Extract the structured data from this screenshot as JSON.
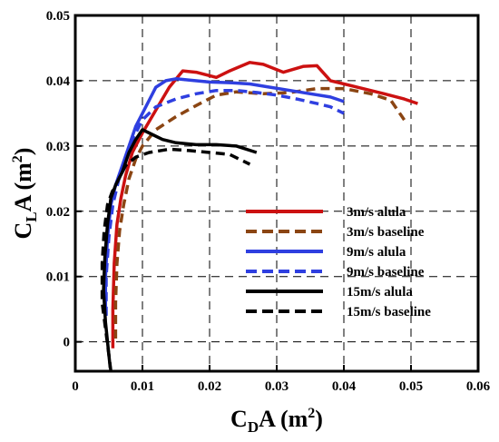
{
  "chart_data": {
    "type": "line",
    "xlabel": {
      "main": "C",
      "sub": "D",
      "rest": "A (m",
      "sup": "2",
      "end": ")"
    },
    "ylabel": {
      "main": "C",
      "sub": "L",
      "rest": "A (m",
      "sup": "2",
      "end": ")"
    },
    "xlim": [
      0,
      0.06
    ],
    "ylim": [
      -0.0045,
      0.05
    ],
    "x_ticks": [
      0,
      0.01,
      0.02,
      0.03,
      0.04,
      0.05,
      0.06
    ],
    "x_tick_labels": [
      "0",
      "0.01",
      "0.02",
      "0.03",
      "0.04",
      "0.05",
      "0.06"
    ],
    "y_ticks": [
      0,
      0.01,
      0.02,
      0.03,
      0.04,
      0.05
    ],
    "y_tick_labels": [
      "0",
      "0.01",
      "0.02",
      "0.03",
      "0.04",
      "0.05"
    ],
    "grid": true,
    "legend_position": "lower-right",
    "series": [
      {
        "name": "3m/s alula",
        "color": "#cc1111",
        "dash": "solid",
        "points": [
          [
            0.0056,
            -0.001
          ],
          [
            0.0056,
            0.005
          ],
          [
            0.0058,
            0.012
          ],
          [
            0.0062,
            0.018
          ],
          [
            0.0068,
            0.022
          ],
          [
            0.0075,
            0.0255
          ],
          [
            0.0085,
            0.029
          ],
          [
            0.01,
            0.032
          ],
          [
            0.012,
            0.0355
          ],
          [
            0.014,
            0.039
          ],
          [
            0.016,
            0.0415
          ],
          [
            0.018,
            0.0413
          ],
          [
            0.021,
            0.0405
          ],
          [
            0.023,
            0.0415
          ],
          [
            0.026,
            0.0428
          ],
          [
            0.028,
            0.0425
          ],
          [
            0.031,
            0.0413
          ],
          [
            0.034,
            0.0422
          ],
          [
            0.036,
            0.0423
          ],
          [
            0.038,
            0.04
          ],
          [
            0.042,
            0.039
          ],
          [
            0.046,
            0.038
          ],
          [
            0.049,
            0.0372
          ],
          [
            0.051,
            0.0365
          ]
        ]
      },
      {
        "name": "3m/s baseline",
        "color": "#8b4513",
        "dash": "dashed",
        "points": [
          [
            0.006,
            0.0005
          ],
          [
            0.006,
            0.006
          ],
          [
            0.0062,
            0.012
          ],
          [
            0.0066,
            0.017
          ],
          [
            0.0072,
            0.021
          ],
          [
            0.008,
            0.025
          ],
          [
            0.009,
            0.028
          ],
          [
            0.01,
            0.03
          ],
          [
            0.012,
            0.0325
          ],
          [
            0.015,
            0.0345
          ],
          [
            0.018,
            0.0362
          ],
          [
            0.021,
            0.0378
          ],
          [
            0.024,
            0.0383
          ],
          [
            0.028,
            0.038
          ],
          [
            0.032,
            0.0382
          ],
          [
            0.036,
            0.0388
          ],
          [
            0.04,
            0.0388
          ],
          [
            0.044,
            0.038
          ],
          [
            0.047,
            0.037
          ],
          [
            0.048,
            0.0355
          ],
          [
            0.049,
            0.034
          ]
        ]
      },
      {
        "name": "9m/s alula",
        "color": "#2f3fe0",
        "dash": "solid",
        "points": [
          [
            0.0045,
            0.004
          ],
          [
            0.0045,
            0.01
          ],
          [
            0.0048,
            0.016
          ],
          [
            0.0053,
            0.021
          ],
          [
            0.006,
            0.024
          ],
          [
            0.007,
            0.027
          ],
          [
            0.008,
            0.03
          ],
          [
            0.009,
            0.033
          ],
          [
            0.01,
            0.035
          ],
          [
            0.011,
            0.037
          ],
          [
            0.012,
            0.039
          ],
          [
            0.0135,
            0.04
          ],
          [
            0.015,
            0.0403
          ],
          [
            0.017,
            0.0401
          ],
          [
            0.02,
            0.0398
          ],
          [
            0.023,
            0.0397
          ],
          [
            0.026,
            0.0395
          ],
          [
            0.029,
            0.039
          ],
          [
            0.032,
            0.0385
          ],
          [
            0.035,
            0.038
          ],
          [
            0.038,
            0.0375
          ],
          [
            0.04,
            0.0368
          ]
        ]
      },
      {
        "name": "9m/s baseline",
        "color": "#2f3fe0",
        "dash": "dashed",
        "points": [
          [
            0.0046,
            0.004
          ],
          [
            0.0046,
            0.01
          ],
          [
            0.005,
            0.016
          ],
          [
            0.0056,
            0.021
          ],
          [
            0.0065,
            0.025
          ],
          [
            0.0075,
            0.028
          ],
          [
            0.0085,
            0.031
          ],
          [
            0.01,
            0.034
          ],
          [
            0.012,
            0.036
          ],
          [
            0.015,
            0.0372
          ],
          [
            0.018,
            0.038
          ],
          [
            0.021,
            0.0385
          ],
          [
            0.024,
            0.0385
          ],
          [
            0.027,
            0.0382
          ],
          [
            0.03,
            0.0378
          ],
          [
            0.033,
            0.0372
          ],
          [
            0.036,
            0.0365
          ],
          [
            0.038,
            0.036
          ],
          [
            0.04,
            0.035
          ]
        ]
      },
      {
        "name": "15m/s alula",
        "color": "#000000",
        "dash": "solid",
        "points": [
          [
            0.0052,
            -0.004
          ],
          [
            0.005,
            -0.002
          ],
          [
            0.0045,
            0.003
          ],
          [
            0.0042,
            0.008
          ],
          [
            0.0044,
            0.013
          ],
          [
            0.0048,
            0.018
          ],
          [
            0.0053,
            0.022
          ],
          [
            0.006,
            0.024
          ],
          [
            0.007,
            0.026
          ],
          [
            0.008,
            0.029
          ],
          [
            0.009,
            0.031
          ],
          [
            0.01,
            0.0325
          ],
          [
            0.011,
            0.032
          ],
          [
            0.013,
            0.031
          ],
          [
            0.015,
            0.0305
          ],
          [
            0.018,
            0.0302
          ],
          [
            0.021,
            0.0302
          ],
          [
            0.024,
            0.03
          ],
          [
            0.027,
            0.029
          ]
        ]
      },
      {
        "name": "15m/s baseline",
        "color": "#000000",
        "dash": "dashed",
        "points": [
          [
            0.0053,
            -0.0045
          ],
          [
            0.005,
            -0.002
          ],
          [
            0.0045,
            0.002
          ],
          [
            0.004,
            0.006
          ],
          [
            0.004,
            0.012
          ],
          [
            0.0043,
            0.017
          ],
          [
            0.0048,
            0.021
          ],
          [
            0.0055,
            0.023
          ],
          [
            0.0065,
            0.025
          ],
          [
            0.0075,
            0.027
          ],
          [
            0.009,
            0.0283
          ],
          [
            0.011,
            0.029
          ],
          [
            0.014,
            0.0295
          ],
          [
            0.017,
            0.0293
          ],
          [
            0.02,
            0.029
          ],
          [
            0.023,
            0.0287
          ],
          [
            0.026,
            0.0272
          ]
        ]
      }
    ]
  }
}
